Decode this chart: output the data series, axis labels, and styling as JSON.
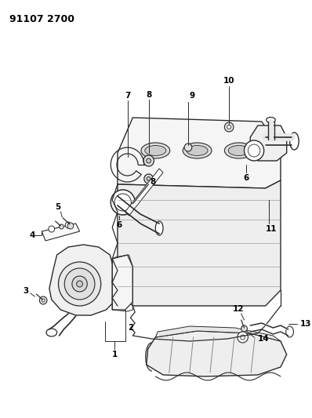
{
  "title": "91107 2700",
  "background_color": "#ffffff",
  "line_color": "#2a2a2a",
  "label_color": "#000000",
  "figsize": [
    3.98,
    5.33
  ],
  "dpi": 100
}
